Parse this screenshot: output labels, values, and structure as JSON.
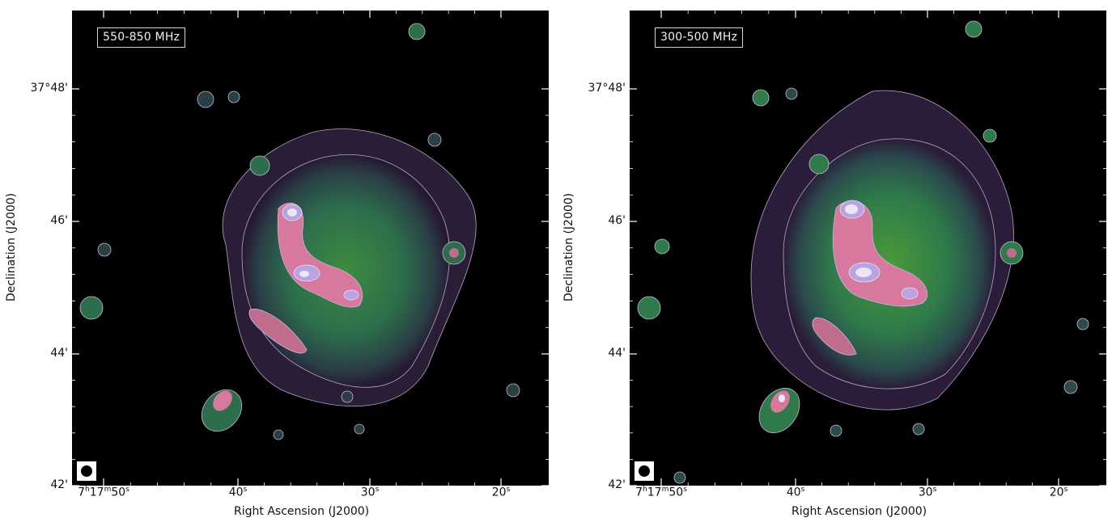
{
  "panels": [
    {
      "band_label": "550-850 MHz",
      "x_axis_title": "Right Ascension (J2000)",
      "y_axis_title": "Declination (J2000)",
      "y_ticks": [
        "37°48'",
        "46'",
        "44'",
        "42'"
      ],
      "x_ticks": [
        {
          "h": "7",
          "hu": "h",
          "m": "17",
          "mu": "m",
          "s": "50",
          "su": "s"
        },
        {
          "s": "40",
          "su": "s"
        },
        {
          "s": "30",
          "su": "s"
        },
        {
          "s": "20",
          "su": "s"
        }
      ]
    },
    {
      "band_label": "300-500 MHz",
      "x_axis_title": "Right Ascension (J2000)",
      "y_axis_title": "Declination (J2000)",
      "y_ticks": [
        "37°48'",
        "46'",
        "44'",
        "42'"
      ],
      "x_ticks": [
        {
          "h": "7",
          "hu": "h",
          "m": "17",
          "mu": "m",
          "s": "50",
          "su": "s"
        },
        {
          "s": "40",
          "su": "s"
        },
        {
          "s": "30",
          "su": "s"
        },
        {
          "s": "20",
          "su": "s"
        }
      ]
    }
  ],
  "colors": {
    "background": "#000000",
    "outer_emission": "#3a2a4a",
    "mid_emission": "#2f7a4a",
    "bright_emission": "#e38fb4",
    "peak_emission": "#e9e1f7",
    "contour": "#c9b7d8"
  }
}
